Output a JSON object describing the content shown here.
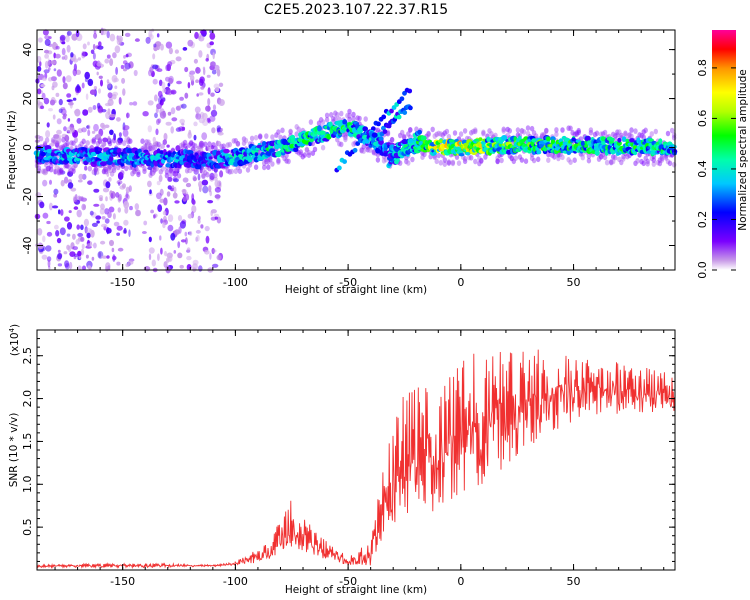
{
  "title": "C2E5.2023.107.22.37.R15",
  "spectrogram": {
    "type": "heatmap",
    "xlabel": "Height of straight line (km)",
    "ylabel": "Frequency (Hz)",
    "xlim": [
      -188,
      95
    ],
    "ylim": [
      -50,
      48
    ],
    "xticks": [
      -150,
      -100,
      -50,
      0,
      50
    ],
    "yticks": [
      -40,
      -20,
      0,
      20,
      40
    ],
    "xtick_labels": [
      "-150",
      "-100",
      "-50",
      "0",
      "50"
    ],
    "ytick_labels": [
      "-40",
      "-20",
      "0",
      "20",
      "40"
    ],
    "colorbar": {
      "label": "Normalized spectral amplitude",
      "range": [
        0,
        0.95
      ],
      "ticks": [
        0.0,
        0.2,
        0.4,
        0.6,
        0.8
      ],
      "tick_labels": [
        "0.0",
        "0.2",
        "0.4",
        "0.6",
        "0.8"
      ]
    },
    "band_trace": [
      {
        "x": -188,
        "f_center": -3,
        "amp": 0.4
      },
      {
        "x": -150,
        "f_center": -4,
        "amp": 0.4
      },
      {
        "x": -110,
        "f_center": -5,
        "amp": 0.35
      },
      {
        "x": -100,
        "f_center": -4,
        "amp": 0.45
      },
      {
        "x": -80,
        "f_center": 0,
        "amp": 0.5
      },
      {
        "x": -60,
        "f_center": 6,
        "amp": 0.55
      },
      {
        "x": -50,
        "f_center": 9,
        "amp": 0.5
      },
      {
        "x": -30,
        "f_center": -2,
        "amp": 0.4
      },
      {
        "x": -18,
        "f_center": 2,
        "amp": 0.55
      },
      {
        "x": -10,
        "f_center": 0,
        "amp": 0.75
      },
      {
        "x": 0,
        "f_center": 0,
        "amp": 0.8
      },
      {
        "x": 20,
        "f_center": 1,
        "amp": 0.6
      },
      {
        "x": 50,
        "f_center": 1,
        "amp": 0.55
      },
      {
        "x": 95,
        "f_center": 0,
        "amp": 0.5
      }
    ]
  },
  "snr": {
    "type": "line",
    "xlabel": "Height of straight line (km)",
    "ylabel": "SNR (10 * v/v)",
    "scale_label": "(x10",
    "scale_exp": "4",
    "scale_close": ")",
    "xlim": [
      -188,
      95
    ],
    "ylim": [
      0,
      2.8
    ],
    "xticks": [
      -150,
      -100,
      -50,
      0,
      50
    ],
    "yticks": [
      0.5,
      1.0,
      1.5,
      2.0,
      2.5
    ],
    "xtick_labels": [
      "-150",
      "-100",
      "-50",
      "0",
      "50"
    ],
    "ytick_labels": [
      "0.5",
      "1.0",
      "1.5",
      "2.0",
      "2.5"
    ],
    "series_color": "#f03030",
    "envelope": [
      {
        "x": -188,
        "base": 0.03,
        "peak": 0.06
      },
      {
        "x": -140,
        "base": 0.03,
        "peak": 0.08
      },
      {
        "x": -110,
        "base": 0.04,
        "peak": 0.06
      },
      {
        "x": -100,
        "base": 0.05,
        "peak": 0.1
      },
      {
        "x": -85,
        "base": 0.1,
        "peak": 0.35
      },
      {
        "x": -75,
        "base": 0.25,
        "peak": 0.85
      },
      {
        "x": -65,
        "base": 0.15,
        "peak": 0.45
      },
      {
        "x": -50,
        "base": 0.05,
        "peak": 0.15
      },
      {
        "x": -40,
        "base": 0.05,
        "peak": 0.35
      },
      {
        "x": -32,
        "base": 0.4,
        "peak": 1.6
      },
      {
        "x": -25,
        "base": 0.6,
        "peak": 2.2
      },
      {
        "x": -10,
        "base": 0.7,
        "peak": 2.1
      },
      {
        "x": 0,
        "base": 0.8,
        "peak": 2.5
      },
      {
        "x": 15,
        "base": 1.1,
        "peak": 2.6
      },
      {
        "x": 35,
        "base": 1.5,
        "peak": 2.6
      },
      {
        "x": 55,
        "base": 1.8,
        "peak": 2.5
      },
      {
        "x": 95,
        "base": 1.85,
        "peak": 2.3
      }
    ]
  }
}
